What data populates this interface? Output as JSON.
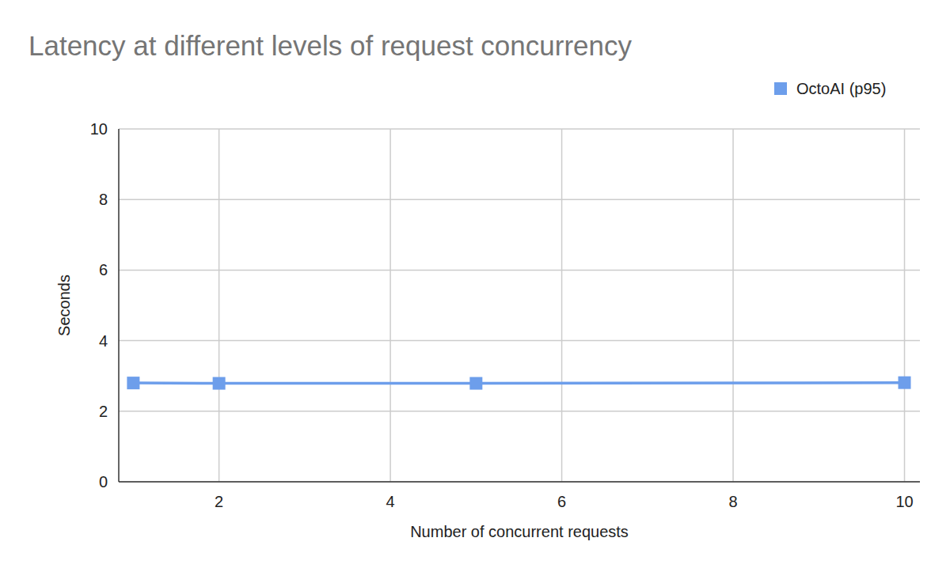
{
  "chart_data": {
    "type": "line",
    "title": "Latency at different levels of request concurrency",
    "x_label": "Number of concurrent requests",
    "y_label": "Seconds",
    "x": [
      1,
      2,
      5,
      10
    ],
    "series": [
      {
        "name": "OctoAI (p95)",
        "color": "#6d9eeb",
        "values": [
          2.8,
          2.79,
          2.79,
          2.81
        ],
        "marker": "square",
        "line_style": "solid"
      }
    ],
    "xlim": [
      0.83,
      10.18
    ],
    "xticks": [
      2,
      4,
      6,
      8,
      10
    ],
    "ylim": [
      0,
      10
    ],
    "yticks": [
      0,
      2,
      4,
      6,
      8,
      10
    ],
    "grid": true,
    "legend": "top-right"
  }
}
